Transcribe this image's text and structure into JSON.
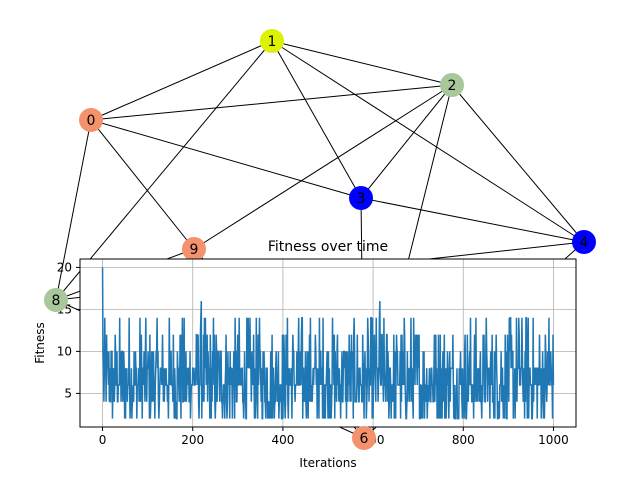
{
  "graph": {
    "nodes": [
      {
        "id": "0",
        "color": "#f4926e"
      },
      {
        "id": "1",
        "color": "#ddf200"
      },
      {
        "id": "2",
        "color": "#a8c89c"
      },
      {
        "id": "3",
        "color": "#0000ff"
      },
      {
        "id": "4",
        "color": "#0000ff"
      },
      {
        "id": "6",
        "color": "#f4926e"
      },
      {
        "id": "8",
        "color": "#a8c89c"
      },
      {
        "id": "9",
        "color": "#f4926e"
      }
    ],
    "edges": [
      [
        "1",
        "0"
      ],
      [
        "1",
        "2"
      ],
      [
        "1",
        "3"
      ],
      [
        "1",
        "4"
      ],
      [
        "1",
        "8"
      ],
      [
        "0",
        "2"
      ],
      [
        "0",
        "3"
      ],
      [
        "0",
        "9"
      ],
      [
        "0",
        "8"
      ],
      [
        "2",
        "9"
      ],
      [
        "2",
        "3"
      ],
      [
        "2",
        "4"
      ],
      [
        "2",
        "6"
      ],
      [
        "3",
        "4"
      ],
      [
        "3",
        "6"
      ],
      [
        "4",
        "6"
      ],
      [
        "4",
        "8"
      ],
      [
        "9",
        "8"
      ],
      [
        "9",
        "6"
      ],
      [
        "8",
        "6"
      ]
    ]
  },
  "chart_data": {
    "type": "line",
    "title": "Fitness over time",
    "xlabel": "Iterations",
    "ylabel": "Fitness",
    "xlim": [
      -50,
      1050
    ],
    "ylim": [
      1,
      21
    ],
    "xticks": [
      "0",
      "200",
      "400",
      "600",
      "800",
      "1000"
    ],
    "yticks": [
      "5",
      "10",
      "15",
      "20"
    ],
    "grid": true,
    "line_color": "#1f77b4",
    "n_points": 1001,
    "highlights": [
      {
        "x": 0,
        "y": 20
      },
      {
        "x": 1,
        "y": 10
      },
      {
        "x": 219,
        "y": 16
      },
      {
        "x": 615,
        "y": 16
      },
      {
        "x": 990,
        "y": 14
      }
    ]
  }
}
